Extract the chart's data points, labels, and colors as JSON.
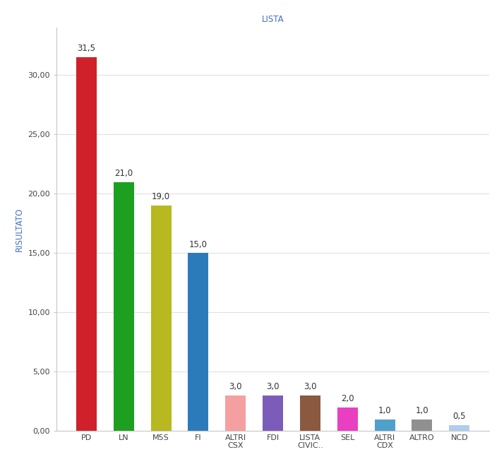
{
  "categories": [
    "PD",
    "LN",
    "M5S",
    "FI",
    "ALTRI\nCSX",
    "FDI",
    "LISTA\nCIVIC..",
    "SEL",
    "ALTRI\nCDX",
    "ALTRO",
    "NCD"
  ],
  "values": [
    31.5,
    21.0,
    19.0,
    15.0,
    3.0,
    3.0,
    3.0,
    2.0,
    1.0,
    1.0,
    0.5
  ],
  "colors": [
    "#d0202a",
    "#1da020",
    "#b8b820",
    "#2b7bba",
    "#f4a0a0",
    "#7b5cb8",
    "#8b5840",
    "#e840c0",
    "#50a0cc",
    "#909090",
    "#b0ccee"
  ],
  "title": "LISTA",
  "ylabel": "RISULTATO",
  "ylim": [
    0,
    34
  ],
  "yticks": [
    0.0,
    5.0,
    10.0,
    15.0,
    20.0,
    25.0,
    30.0
  ],
  "title_color": "#4472c4",
  "ylabel_color": "#4472c4",
  "title_fontsize": 8.5,
  "ylabel_fontsize": 8.5,
  "label_fontsize": 8.5,
  "xtick_fontsize": 8,
  "ytick_fontsize": 8,
  "background_color": "#ffffff",
  "border_color": "#c8c8c8",
  "grid_color": "#e0e0e0",
  "bar_width": 0.55
}
